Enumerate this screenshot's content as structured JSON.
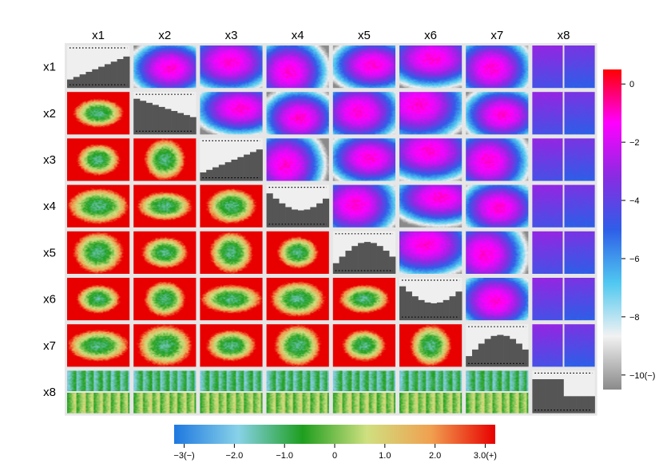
{
  "chart_data": {
    "type": "heatmap",
    "title": "",
    "variables": [
      "x1",
      "x2",
      "x3",
      "x4",
      "x5",
      "x6",
      "x7",
      "x8"
    ],
    "upper_scale": {
      "ticks": [
        0,
        -2,
        -4,
        -6,
        -8,
        -10
      ],
      "tick_labels": [
        "0",
        "−2",
        "−4",
        "−6",
        "−8",
        "−10(−)"
      ],
      "range": [
        -10.5,
        0.5
      ],
      "colors": [
        "#8a8a8a",
        "#f2f2f2",
        "#4fc8f0",
        "#2e5ee8",
        "#8a2be2",
        "#ff00ff",
        "#ff0000"
      ]
    },
    "lower_scale": {
      "ticks": [
        -3,
        -2,
        -1,
        0,
        1,
        2,
        3
      ],
      "tick_labels": [
        "−3(−)",
        "−2.0",
        "−1.0",
        "0",
        "1.0",
        "2.0",
        "3.0(+)"
      ],
      "range": [
        -3.2,
        3.2
      ],
      "colors": [
        "#1e78e0",
        "#88d2e8",
        "#1e9e1e",
        "#cfe080",
        "#f0a050",
        "#e80000"
      ]
    },
    "diagonal_fill": "#555555",
    "dotted_rules": "on",
    "separators": "on"
  }
}
